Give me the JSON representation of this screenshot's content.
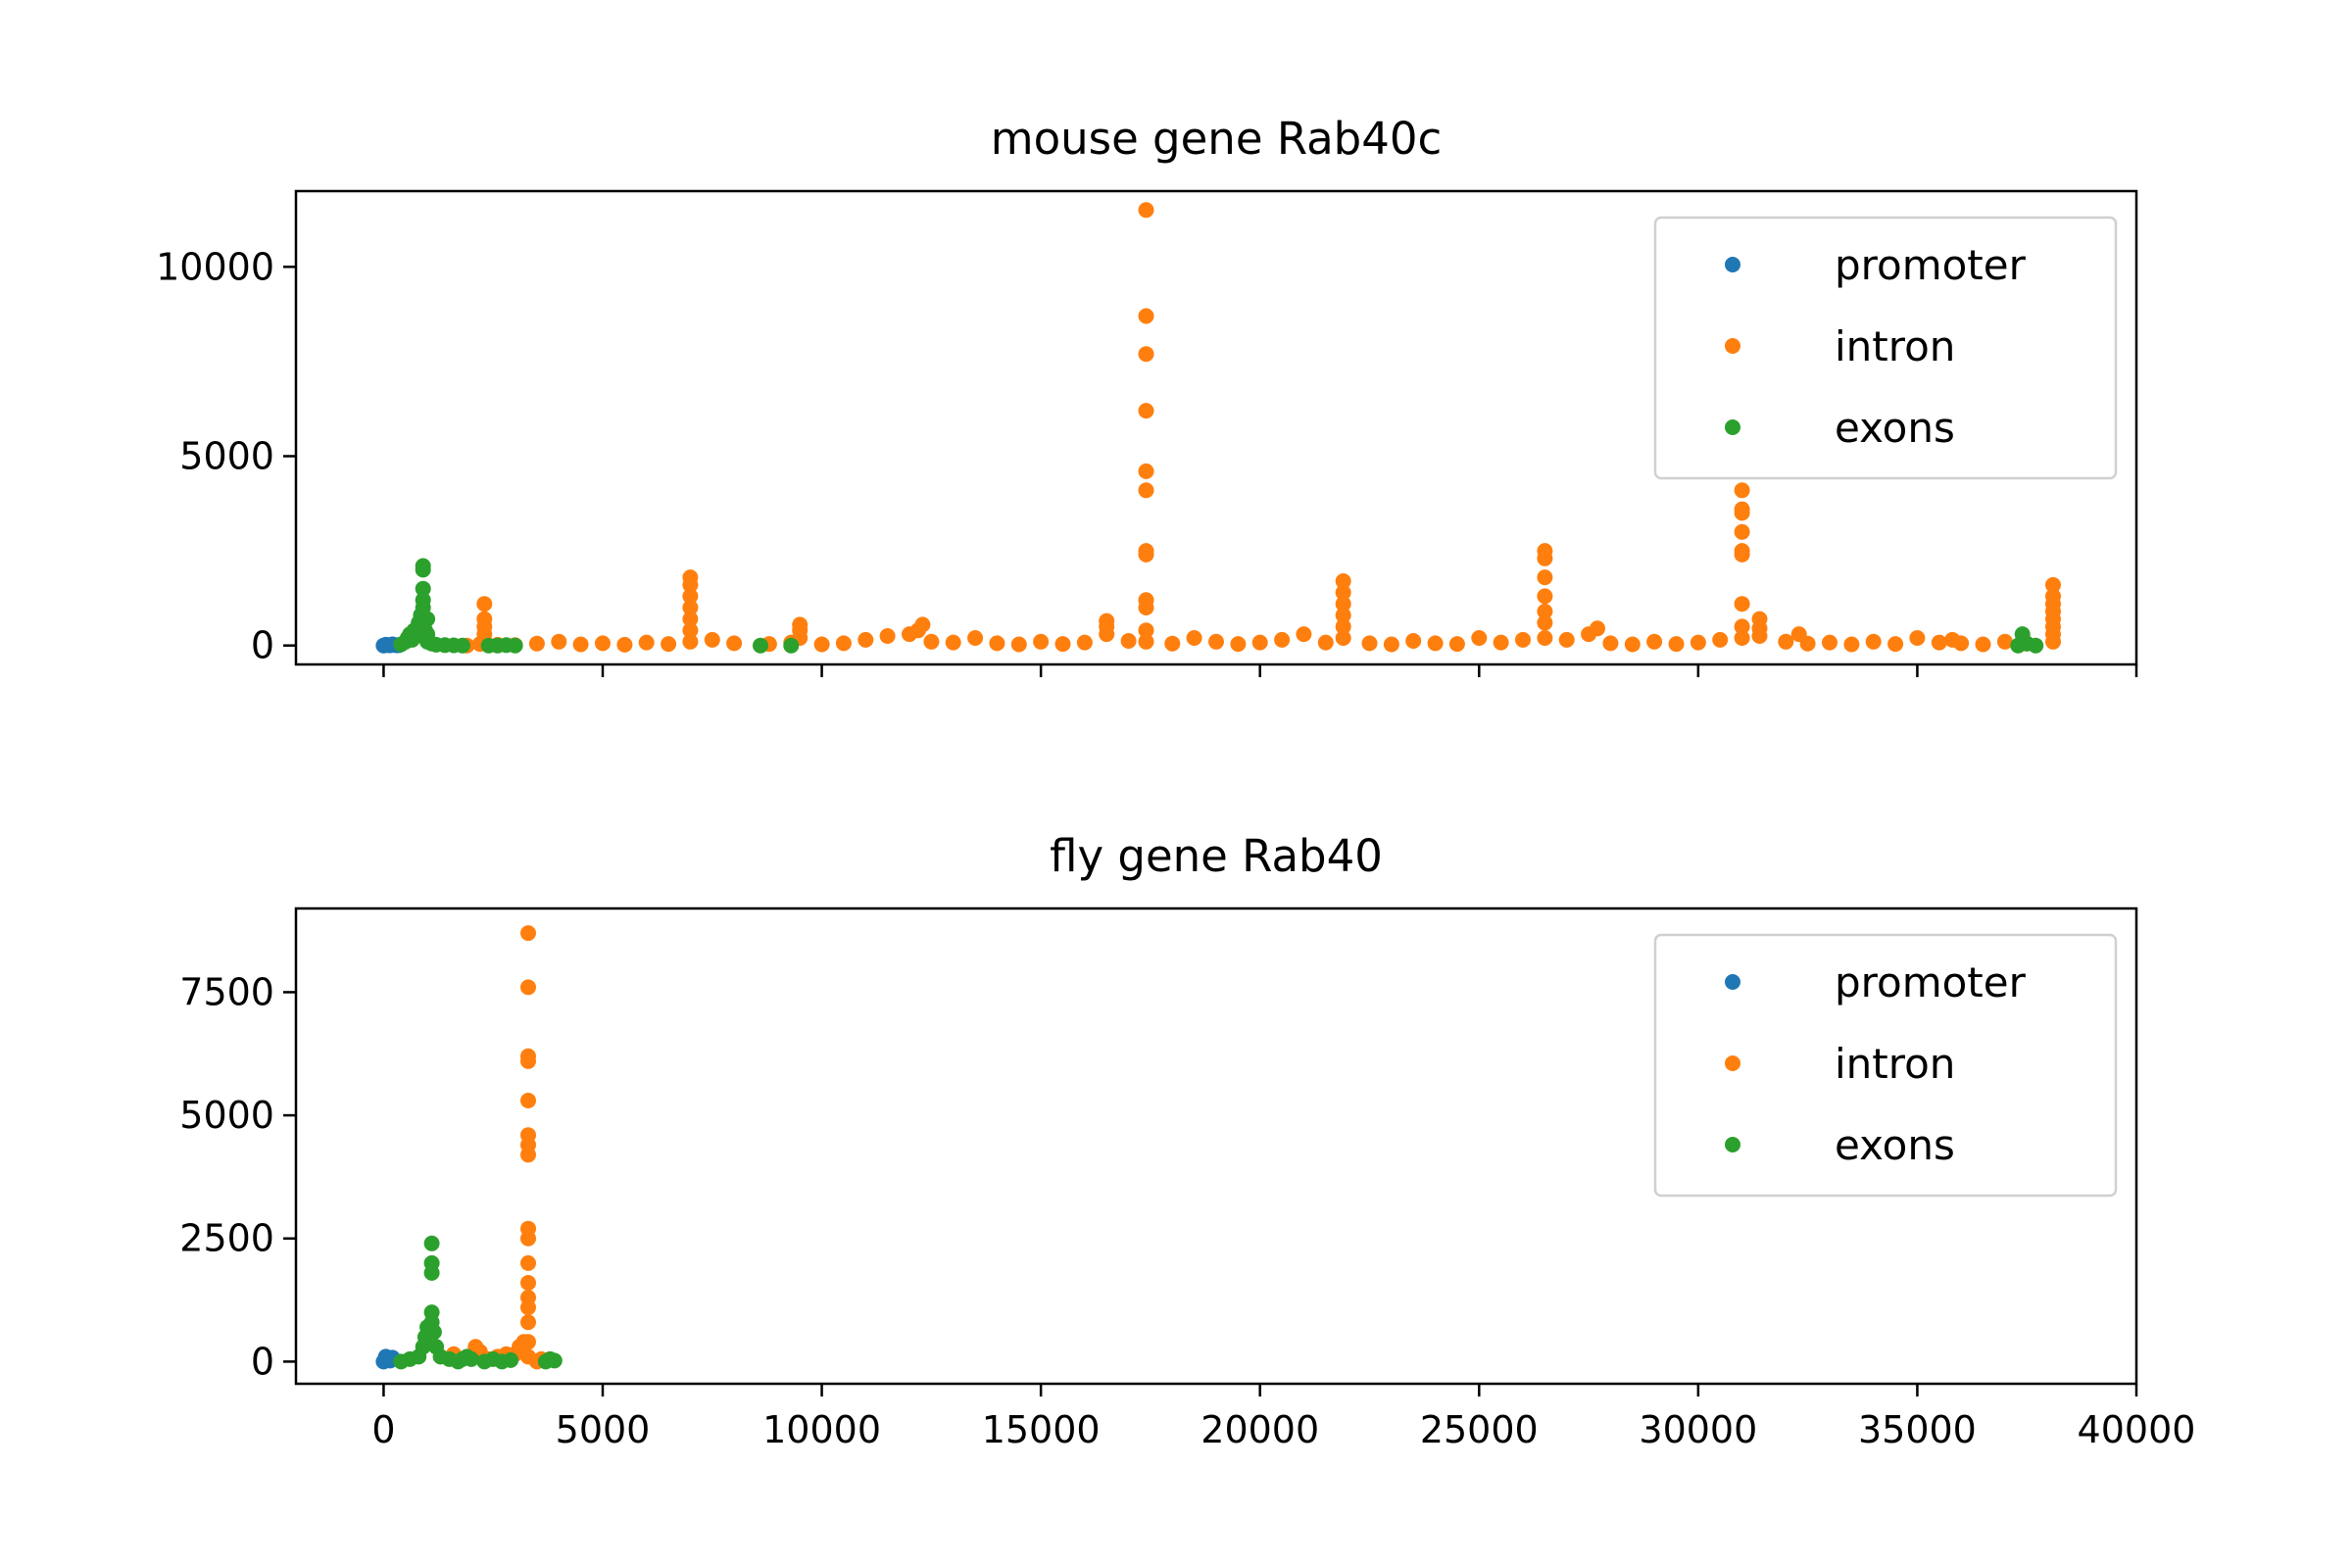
{
  "colors": {
    "promoter": "#1f77b4",
    "introns": "#ff7f0e",
    "exons": "#2ca02c",
    "axis": "#000000",
    "legend_border": "#d0d0d0"
  },
  "chart_data": [
    {
      "type": "scatter",
      "title": "mouse gene Rab40c",
      "xlabel": "",
      "ylabel": "",
      "xlim": [
        -2000,
        40000
      ],
      "ylim": [
        -500,
        12000
      ],
      "xticks": [
        0,
        5000,
        10000,
        15000,
        20000,
        25000,
        30000,
        35000,
        40000
      ],
      "xtick_labels_visible": false,
      "yticks": [
        0,
        5000,
        10000
      ],
      "ytick_labels": [
        "0",
        "5000",
        "10000"
      ],
      "grid": false,
      "legend": {
        "placement": "top-right",
        "entries": [
          "promoter",
          "intron",
          "exons"
        ]
      },
      "series": [
        {
          "name": "promoter",
          "points": [
            [
              0,
              0
            ],
            [
              50,
              20
            ],
            [
              100,
              10
            ],
            [
              150,
              5
            ],
            [
              200,
              30
            ],
            [
              250,
              15
            ],
            [
              300,
              5
            ],
            [
              350,
              10
            ]
          ]
        },
        {
          "name": "introns",
          "points": [
            [
              1900,
              0
            ],
            [
              2200,
              40
            ],
            [
              2300,
              100
            ],
            [
              2300,
              300
            ],
            [
              2300,
              500
            ],
            [
              2300,
              700
            ],
            [
              2300,
              1100
            ],
            [
              2600,
              20
            ],
            [
              3000,
              10
            ],
            [
              3500,
              50
            ],
            [
              4000,
              100
            ],
            [
              4500,
              30
            ],
            [
              5000,
              60
            ],
            [
              5500,
              20
            ],
            [
              6000,
              80
            ],
            [
              6500,
              40
            ],
            [
              7000,
              100
            ],
            [
              7000,
              400
            ],
            [
              7000,
              700
            ],
            [
              7000,
              1000
            ],
            [
              7000,
              1300
            ],
            [
              7000,
              1600
            ],
            [
              7000,
              1800
            ],
            [
              7500,
              150
            ],
            [
              8000,
              60
            ],
            [
              8800,
              40
            ],
            [
              9300,
              80
            ],
            [
              9500,
              200
            ],
            [
              9500,
              400
            ],
            [
              9500,
              550
            ],
            [
              10000,
              30
            ],
            [
              10500,
              60
            ],
            [
              11000,
              150
            ],
            [
              11500,
              250
            ],
            [
              12000,
              300
            ],
            [
              12200,
              400
            ],
            [
              12300,
              550
            ],
            [
              12500,
              100
            ],
            [
              13000,
              80
            ],
            [
              13500,
              200
            ],
            [
              14000,
              60
            ],
            [
              14500,
              30
            ],
            [
              15000,
              100
            ],
            [
              15500,
              40
            ],
            [
              16000,
              80
            ],
            [
              16500,
              300
            ],
            [
              16500,
              500
            ],
            [
              16500,
              650
            ],
            [
              17000,
              120
            ],
            [
              17400,
              100
            ],
            [
              17400,
              400
            ],
            [
              17400,
              1000
            ],
            [
              17400,
              1200
            ],
            [
              17400,
              2400
            ],
            [
              17400,
              2500
            ],
            [
              17400,
              4100
            ],
            [
              17400,
              4600
            ],
            [
              17400,
              6200
            ],
            [
              17400,
              7700
            ],
            [
              17400,
              8700
            ],
            [
              17400,
              11500
            ],
            [
              18000,
              50
            ],
            [
              18500,
              200
            ],
            [
              19000,
              100
            ],
            [
              19500,
              40
            ],
            [
              20000,
              80
            ],
            [
              20500,
              150
            ],
            [
              21000,
              300
            ],
            [
              21500,
              80
            ],
            [
              21900,
              200
            ],
            [
              21900,
              500
            ],
            [
              21900,
              800
            ],
            [
              21900,
              1100
            ],
            [
              21900,
              1400
            ],
            [
              21900,
              1700
            ],
            [
              22500,
              60
            ],
            [
              23000,
              30
            ],
            [
              23500,
              120
            ],
            [
              24000,
              60
            ],
            [
              24500,
              40
            ],
            [
              25000,
              200
            ],
            [
              25500,
              80
            ],
            [
              26000,
              150
            ],
            [
              26500,
              200
            ],
            [
              26500,
              600
            ],
            [
              26500,
              900
            ],
            [
              26500,
              1300
            ],
            [
              26500,
              1800
            ],
            [
              26500,
              2300
            ],
            [
              26500,
              2500
            ],
            [
              27000,
              150
            ],
            [
              27500,
              300
            ],
            [
              27700,
              450
            ],
            [
              28000,
              60
            ],
            [
              28500,
              30
            ],
            [
              29000,
              100
            ],
            [
              29500,
              40
            ],
            [
              30000,
              80
            ],
            [
              30500,
              150
            ],
            [
              31000,
              200
            ],
            [
              31000,
              500
            ],
            [
              31000,
              1100
            ],
            [
              31000,
              2400
            ],
            [
              31000,
              2500
            ],
            [
              31000,
              3000
            ],
            [
              31000,
              3500
            ],
            [
              31000,
              3600
            ],
            [
              31000,
              4100
            ],
            [
              31400,
              250
            ],
            [
              31400,
              450
            ],
            [
              31400,
              700
            ],
            [
              32000,
              100
            ],
            [
              32300,
              300
            ],
            [
              32500,
              50
            ],
            [
              33000,
              80
            ],
            [
              33500,
              30
            ],
            [
              34000,
              100
            ],
            [
              34500,
              40
            ],
            [
              35000,
              200
            ],
            [
              35500,
              80
            ],
            [
              35800,
              150
            ],
            [
              36000,
              60
            ],
            [
              36500,
              30
            ],
            [
              37000,
              100
            ],
            [
              37500,
              50
            ],
            [
              38100,
              100
            ],
            [
              38100,
              300
            ],
            [
              38100,
              500
            ],
            [
              38100,
              700
            ],
            [
              38100,
              900
            ],
            [
              38100,
              1100
            ],
            [
              38100,
              1300
            ],
            [
              38100,
              1600
            ]
          ]
        },
        {
          "name": "exons",
          "points": [
            [
              400,
              30
            ],
            [
              500,
              100
            ],
            [
              550,
              200
            ],
            [
              600,
              300
            ],
            [
              650,
              150
            ],
            [
              700,
              400
            ],
            [
              750,
              250
            ],
            [
              800,
              600
            ],
            [
              850,
              800
            ],
            [
              900,
              1000
            ],
            [
              900,
              1200
            ],
            [
              900,
              1500
            ],
            [
              900,
              2000
            ],
            [
              900,
              2100
            ],
            [
              950,
              400
            ],
            [
              1000,
              300
            ],
            [
              1000,
              700
            ],
            [
              1000,
              100
            ],
            [
              1100,
              50
            ],
            [
              1200,
              20
            ],
            [
              1400,
              10
            ],
            [
              1600,
              5
            ],
            [
              1800,
              0
            ],
            [
              2400,
              0
            ],
            [
              2600,
              0
            ],
            [
              2800,
              10
            ],
            [
              3000,
              0
            ],
            [
              8600,
              0
            ],
            [
              9300,
              0
            ],
            [
              37300,
              0
            ],
            [
              37400,
              100
            ],
            [
              37400,
              300
            ],
            [
              37500,
              50
            ],
            [
              37700,
              0
            ]
          ]
        }
      ]
    },
    {
      "type": "scatter",
      "title": "fly gene Rab40",
      "xlabel": "",
      "ylabel": "",
      "xlim": [
        -2000,
        40000
      ],
      "ylim": [
        -450,
        9200
      ],
      "xticks": [
        0,
        5000,
        10000,
        15000,
        20000,
        25000,
        30000,
        35000,
        40000
      ],
      "xtick_labels": [
        "0",
        "5000",
        "10000",
        "15000",
        "20000",
        "25000",
        "30000",
        "35000",
        "40000"
      ],
      "yticks": [
        0,
        2500,
        5000,
        7500
      ],
      "ytick_labels": [
        "0",
        "2500",
        "5000",
        "7500"
      ],
      "grid": false,
      "legend": {
        "placement": "top-right",
        "entries": [
          "promoter",
          "intron",
          "exons"
        ]
      },
      "series": [
        {
          "name": "promoter",
          "points": [
            [
              0,
              0
            ],
            [
              50,
              100
            ],
            [
              100,
              50
            ],
            [
              150,
              20
            ],
            [
              200,
              80
            ]
          ]
        },
        {
          "name": "introns",
          "points": [
            [
              1600,
              150
            ],
            [
              2100,
              300
            ],
            [
              2200,
              200
            ],
            [
              2400,
              50
            ],
            [
              2600,
              100
            ],
            [
              2800,
              150
            ],
            [
              3000,
              150
            ],
            [
              3100,
              300
            ],
            [
              3200,
              400
            ],
            [
              3300,
              100
            ],
            [
              3300,
              400
            ],
            [
              3300,
              800
            ],
            [
              3300,
              1100
            ],
            [
              3300,
              1300
            ],
            [
              3300,
              1600
            ],
            [
              3300,
              2000
            ],
            [
              3300,
              2500
            ],
            [
              3300,
              2700
            ],
            [
              3300,
              4200
            ],
            [
              3300,
              4400
            ],
            [
              3300,
              4600
            ],
            [
              3300,
              5300
            ],
            [
              3300,
              6100
            ],
            [
              3300,
              6200
            ],
            [
              3300,
              7600
            ],
            [
              3300,
              8700
            ],
            [
              3500,
              0
            ],
            [
              3600,
              50
            ]
          ]
        },
        {
          "name": "exons",
          "points": [
            [
              400,
              0
            ],
            [
              600,
              50
            ],
            [
              800,
              100
            ],
            [
              900,
              300
            ],
            [
              950,
              500
            ],
            [
              1000,
              700
            ],
            [
              1100,
              800
            ],
            [
              1100,
              1000
            ],
            [
              1100,
              1800
            ],
            [
              1100,
              2000
            ],
            [
              1100,
              2400
            ],
            [
              1150,
              600
            ],
            [
              1200,
              300
            ],
            [
              1300,
              100
            ],
            [
              1500,
              50
            ],
            [
              1700,
              0
            ],
            [
              1800,
              50
            ],
            [
              1900,
              100
            ],
            [
              2000,
              50
            ],
            [
              2300,
              0
            ],
            [
              2500,
              50
            ],
            [
              2700,
              0
            ],
            [
              2900,
              30
            ],
            [
              3700,
              0
            ],
            [
              3800,
              50
            ],
            [
              3900,
              20
            ]
          ]
        }
      ]
    }
  ]
}
